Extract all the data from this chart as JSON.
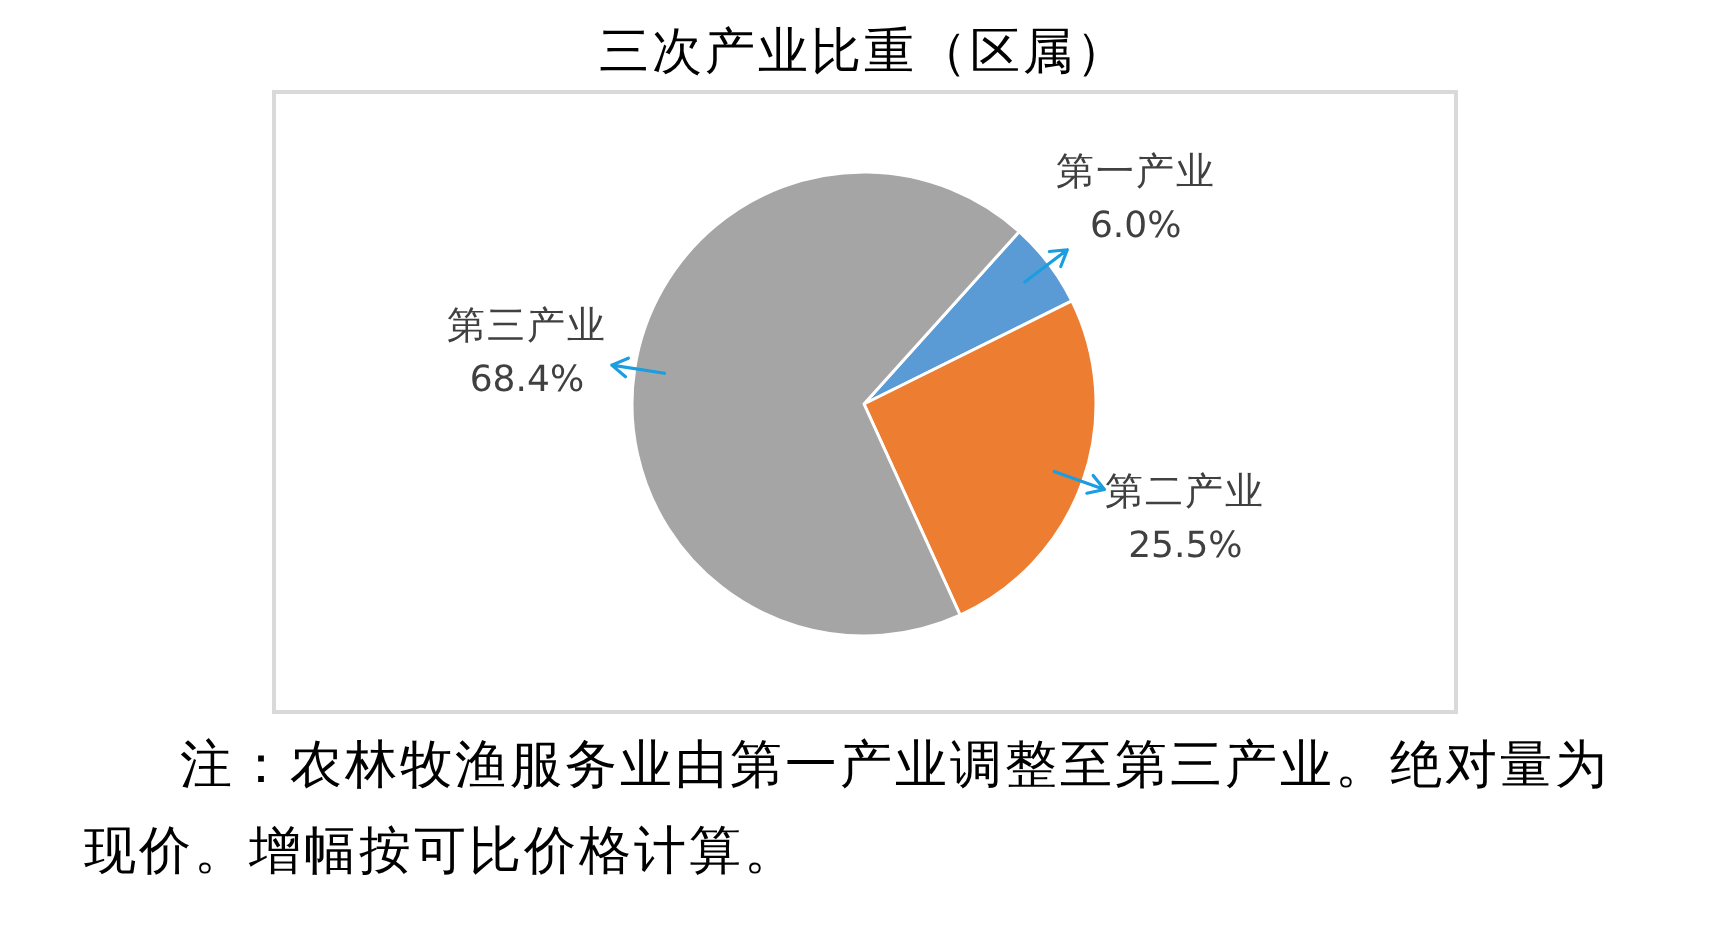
{
  "chart_data": {
    "type": "pie",
    "title": "三次产业比重（区属）",
    "categories": [
      "第一产业",
      "第二产业",
      "第三产业"
    ],
    "values": [
      6.0,
      25.5,
      68.4
    ],
    "value_labels": [
      "6.0%",
      "25.5%",
      "68.4%"
    ],
    "colors": [
      "#5b9bd5",
      "#ed7d31",
      "#a5a5a5"
    ],
    "annotations": [
      "注：农林牧渔服务业由第一产业调整至第三产业。绝对量为现价。增幅按可比价格计算。"
    ]
  }
}
